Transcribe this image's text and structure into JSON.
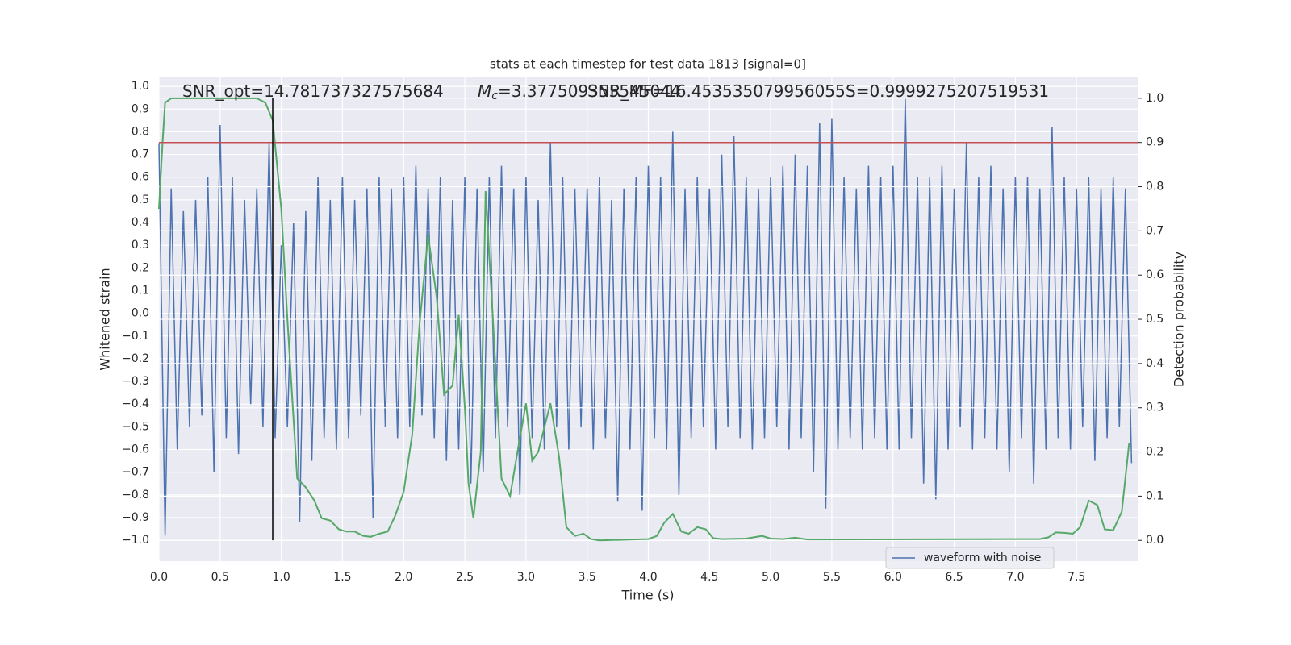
{
  "chart_data": {
    "type": "line",
    "title": "stats at each timestep for test data 1813 [signal=0]",
    "x_label": "Time (s)",
    "y_label": "Whitened strain",
    "y2_label": "Detection probability",
    "xlim": [
      0,
      8.0
    ],
    "ylim": [
      -1.092,
      1.043
    ],
    "y2lim": [
      -0.047,
      1.049
    ],
    "xticks": [
      {
        "value": 0,
        "label": "0.0"
      },
      {
        "value": 0.5,
        "label": "0.5"
      },
      {
        "value": 1,
        "label": "1.0"
      },
      {
        "value": 1.5,
        "label": "1.5"
      },
      {
        "value": 2,
        "label": "2.0"
      },
      {
        "value": 2.5,
        "label": "2.5"
      },
      {
        "value": 3,
        "label": "3.0"
      },
      {
        "value": 3.5,
        "label": "3.5"
      },
      {
        "value": 4,
        "label": "4.0"
      },
      {
        "value": 4.5,
        "label": "4.5"
      },
      {
        "value": 5,
        "label": "5.0"
      },
      {
        "value": 5.5,
        "label": "5.5"
      },
      {
        "value": 6,
        "label": "6.0"
      },
      {
        "value": 6.5,
        "label": "6.5"
      },
      {
        "value": 7,
        "label": "7.0"
      },
      {
        "value": 7.5,
        "label": "7.5"
      }
    ],
    "yticks": [
      {
        "value": -1,
        "label": "−1.0"
      },
      {
        "value": -0.9,
        "label": "−0.9"
      },
      {
        "value": -0.8,
        "label": "−0.8"
      },
      {
        "value": -0.7,
        "label": "−0.7"
      },
      {
        "value": -0.6,
        "label": "−0.6"
      },
      {
        "value": -0.5,
        "label": "−0.5"
      },
      {
        "value": -0.4,
        "label": "−0.4"
      },
      {
        "value": -0.3,
        "label": "−0.3"
      },
      {
        "value": -0.2,
        "label": "−0.2"
      },
      {
        "value": -0.1,
        "label": "−0.1"
      },
      {
        "value": 0,
        "label": "0.0"
      },
      {
        "value": 0.1,
        "label": "0.1"
      },
      {
        "value": 0.2,
        "label": "0.2"
      },
      {
        "value": 0.3,
        "label": "0.3"
      },
      {
        "value": 0.4,
        "label": "0.4"
      },
      {
        "value": 0.5,
        "label": "0.5"
      },
      {
        "value": 0.6,
        "label": "0.6"
      },
      {
        "value": 0.7,
        "label": "0.7"
      },
      {
        "value": 0.8,
        "label": "0.8"
      },
      {
        "value": 0.9,
        "label": "0.9"
      },
      {
        "value": 1,
        "label": "1.0"
      }
    ],
    "y2ticks": [
      {
        "value": 0,
        "label": "0.0"
      },
      {
        "value": 0.1,
        "label": "0.1"
      },
      {
        "value": 0.2,
        "label": "0.2"
      },
      {
        "value": 0.3,
        "label": "0.3"
      },
      {
        "value": 0.4,
        "label": "0.4"
      },
      {
        "value": 0.5,
        "label": "0.5"
      },
      {
        "value": 0.6,
        "label": "0.6"
      },
      {
        "value": 0.7,
        "label": "0.7"
      },
      {
        "value": 0.8,
        "label": "0.8"
      },
      {
        "value": 0.9,
        "label": "0.9"
      },
      {
        "value": 1,
        "label": "1.0"
      }
    ],
    "grid": true,
    "legend": "lower right",
    "annotations": [
      {
        "text": "SNR_opt=14.781737327575684"
      },
      {
        "symbol": "M",
        "subscript": "c",
        "text": "=3.377509355545044"
      },
      {
        "text": "SNR_MF=16.453535079956055"
      },
      {
        "text": "S=0.9999275207519531"
      }
    ],
    "hlines": [
      {
        "value": 0.9,
        "axis": "y2",
        "color": "#c44e52"
      }
    ],
    "vlines": [
      {
        "value": 0.93,
        "ymin": -1.0,
        "ymax": 0.95,
        "color": "#000000"
      }
    ],
    "series": [
      {
        "name": "waveform with noise",
        "color": "#4c72b0",
        "x": [
          0,
          0.05,
          0.1,
          0.15,
          0.2,
          0.25,
          0.3,
          0.35,
          0.4,
          0.45,
          0.5,
          0.55,
          0.6,
          0.65,
          0.7,
          0.75,
          0.8,
          0.85,
          0.9,
          0.95,
          1,
          1.05,
          1.1,
          1.15,
          1.2,
          1.25,
          1.3,
          1.35,
          1.4,
          1.45,
          1.5,
          1.55,
          1.6,
          1.65,
          1.7,
          1.75,
          1.8,
          1.85,
          1.9,
          1.95,
          2,
          2.05,
          2.1,
          2.15,
          2.2,
          2.25,
          2.3,
          2.35,
          2.4,
          2.45,
          2.5,
          2.55,
          2.6,
          2.65,
          2.7,
          2.75,
          2.8,
          2.85,
          2.9,
          2.95,
          3,
          3.05,
          3.1,
          3.15,
          3.2,
          3.25,
          3.3,
          3.35,
          3.4,
          3.45,
          3.5,
          3.55,
          3.6,
          3.65,
          3.7,
          3.75,
          3.8,
          3.85,
          3.9,
          3.95,
          4,
          4.05,
          4.1,
          4.15,
          4.2,
          4.25,
          4.3,
          4.35,
          4.4,
          4.45,
          4.5,
          4.55,
          4.6,
          4.65,
          4.7,
          4.75,
          4.8,
          4.85,
          4.9,
          4.95,
          5,
          5.05,
          5.1,
          5.15,
          5.2,
          5.25,
          5.3,
          5.35,
          5.4,
          5.45,
          5.5,
          5.55,
          5.6,
          5.65,
          5.7,
          5.75,
          5.8,
          5.85,
          5.9,
          5.95,
          6,
          6.05,
          6.1,
          6.15,
          6.2,
          6.25,
          6.3,
          6.35,
          6.4,
          6.45,
          6.5,
          6.55,
          6.6,
          6.65,
          6.7,
          6.75,
          6.8,
          6.85,
          6.9,
          6.95,
          7,
          7.05,
          7.1,
          7.15,
          7.2,
          7.25,
          7.3,
          7.35,
          7.4,
          7.45,
          7.5,
          7.55,
          7.6,
          7.65,
          7.7,
          7.75,
          7.8,
          7.85,
          7.9,
          7.95
        ],
        "values": [
          0.75,
          -0.98,
          0.55,
          -0.6,
          0.45,
          -0.5,
          0.5,
          -0.45,
          0.6,
          -0.7,
          0.83,
          -0.55,
          0.6,
          -0.62,
          0.5,
          -0.4,
          0.55,
          -0.5,
          0.75,
          -0.55,
          0.3,
          -0.5,
          0.4,
          -0.92,
          0.45,
          -0.65,
          0.6,
          -0.55,
          0.5,
          -0.6,
          0.6,
          -0.55,
          0.5,
          -0.45,
          0.55,
          -0.9,
          0.6,
          -0.5,
          0.55,
          -0.55,
          0.6,
          -0.5,
          0.65,
          -0.45,
          0.55,
          -0.55,
          0.6,
          -0.65,
          0.5,
          -0.6,
          0.6,
          -0.75,
          0.55,
          -0.7,
          0.6,
          -0.55,
          0.65,
          -0.5,
          0.55,
          -0.8,
          0.6,
          -0.55,
          0.5,
          -0.6,
          0.75,
          -0.5,
          0.6,
          -0.6,
          0.55,
          -0.5,
          0.55,
          -0.6,
          0.6,
          -0.55,
          0.5,
          -0.83,
          0.55,
          -0.6,
          0.6,
          -0.87,
          0.65,
          -0.55,
          0.6,
          -0.6,
          0.8,
          -0.8,
          0.55,
          -0.55,
          0.6,
          -0.5,
          0.55,
          -0.6,
          0.7,
          -0.5,
          0.78,
          -0.55,
          0.6,
          -0.6,
          0.55,
          -0.55,
          0.6,
          -0.5,
          0.65,
          -0.6,
          0.7,
          -0.55,
          0.65,
          -0.7,
          0.84,
          -0.86,
          0.86,
          -0.6,
          0.6,
          -0.55,
          0.55,
          -0.6,
          0.65,
          -0.55,
          0.6,
          -0.6,
          0.65,
          -0.6,
          0.95,
          -0.55,
          0.6,
          -0.75,
          0.6,
          -0.82,
          0.65,
          -0.6,
          0.55,
          -0.5,
          0.75,
          -0.6,
          0.6,
          -0.55,
          0.65,
          -0.6,
          0.55,
          -0.7,
          0.6,
          -0.55,
          0.6,
          -0.75,
          0.55,
          -0.6,
          0.82,
          -0.55,
          0.6,
          -0.6,
          0.55,
          -0.5,
          0.6,
          -0.65,
          0.55,
          -0.55,
          0.6,
          -0.5,
          0.55,
          -0.66
        ]
      },
      {
        "color": "#55a868",
        "axis": "y2",
        "x": [
          0,
          0.03,
          0.05,
          0.1,
          0.8,
          0.87,
          0.93,
          1,
          1.05,
          1.13,
          1.2,
          1.27,
          1.33,
          1.4,
          1.47,
          1.53,
          1.6,
          1.67,
          1.73,
          1.8,
          1.87,
          1.93,
          2,
          2.07,
          2.13,
          2.2,
          2.27,
          2.33,
          2.4,
          2.45,
          2.5,
          2.53,
          2.57,
          2.63,
          2.67,
          2.73,
          2.8,
          2.87,
          2.93,
          3,
          3.05,
          3.1,
          3.2,
          3.27,
          3.33,
          3.4,
          3.47,
          3.53,
          3.6,
          4,
          4.07,
          4.13,
          4.2,
          4.27,
          4.33,
          4.4,
          4.47,
          4.53,
          4.6,
          4.8,
          4.93,
          5,
          5.1,
          5.2,
          5.3,
          7.2,
          7.27,
          7.33,
          7.4,
          7.47,
          7.53,
          7.6,
          7.67,
          7.73,
          7.8,
          7.87,
          7.93
        ],
        "values": [
          0.75,
          0.9,
          0.99,
          1.0,
          1.0,
          0.99,
          0.95,
          0.75,
          0.5,
          0.14,
          0.12,
          0.09,
          0.05,
          0.045,
          0.025,
          0.02,
          0.02,
          0.01,
          0.008,
          0.015,
          0.02,
          0.055,
          0.11,
          0.24,
          0.49,
          0.69,
          0.55,
          0.33,
          0.35,
          0.51,
          0.3,
          0.13,
          0.05,
          0.2,
          0.79,
          0.5,
          0.14,
          0.1,
          0.2,
          0.31,
          0.18,
          0.2,
          0.31,
          0.19,
          0.03,
          0.01,
          0.015,
          0.003,
          0.0,
          0.003,
          0.01,
          0.04,
          0.06,
          0.02,
          0.015,
          0.03,
          0.025,
          0.005,
          0.003,
          0.004,
          0.01,
          0.004,
          0.003,
          0.006,
          0.002,
          0.003,
          0.007,
          0.018,
          0.017,
          0.015,
          0.03,
          0.09,
          0.08,
          0.025,
          0.023,
          0.065,
          0.22
        ]
      }
    ]
  }
}
